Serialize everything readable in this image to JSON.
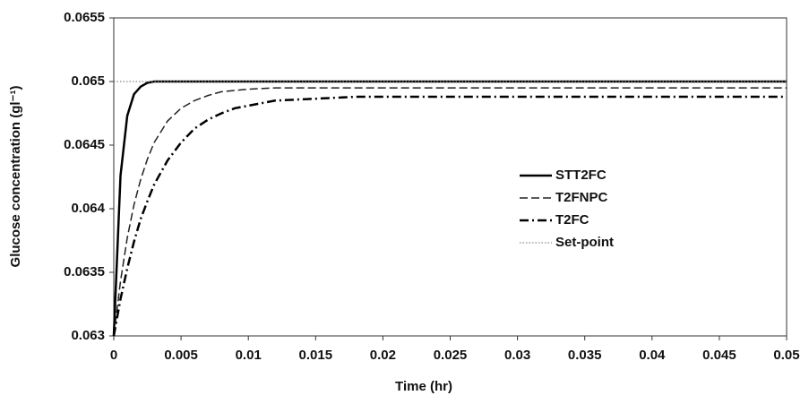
{
  "chart_data": {
    "type": "line",
    "xlabel": "Time (hr)",
    "ylabel": "Glucose concentration (gl⁻¹)",
    "x": [
      0,
      0.0005,
      0.001,
      0.0015,
      0.002,
      0.0025,
      0.003,
      0.004,
      0.005,
      0.006,
      0.007,
      0.008,
      0.009,
      0.01,
      0.012,
      0.014,
      0.016,
      0.018,
      0.02,
      0.025,
      0.03,
      0.035,
      0.04,
      0.045,
      0.05
    ],
    "series": [
      {
        "name": "STT2FC",
        "color": "#000000",
        "dash": "solid",
        "width": 2.5,
        "values": [
          0.063,
          0.06426,
          0.06473,
          0.0649,
          0.06496,
          0.06499,
          0.065,
          0.065,
          0.065,
          0.065,
          0.065,
          0.065,
          0.065,
          0.065,
          0.065,
          0.065,
          0.065,
          0.065,
          0.065,
          0.065,
          0.065,
          0.065,
          0.065,
          0.065,
          0.065
        ]
      },
      {
        "name": "T2FNPC",
        "color": "#222222",
        "dash": "dashed",
        "width": 1.5,
        "values": [
          0.063,
          0.06343,
          0.06377,
          0.06403,
          0.06423,
          0.06439,
          0.06452,
          0.06469,
          0.06479,
          0.06485,
          0.06489,
          0.06492,
          0.06493,
          0.06494,
          0.06495,
          0.06495,
          0.06495,
          0.06495,
          0.06495,
          0.06495,
          0.06495,
          0.06495,
          0.06495,
          0.06495,
          0.06495
        ]
      },
      {
        "name": "T2FC",
        "color": "#000000",
        "dash": "dashdot",
        "width": 2.5,
        "values": [
          0.063,
          0.06329,
          0.06353,
          0.06374,
          0.06392,
          0.06406,
          0.06419,
          0.06438,
          0.06452,
          0.06463,
          0.0647,
          0.06475,
          0.06479,
          0.06481,
          0.06485,
          0.06486,
          0.06487,
          0.06488,
          0.06488,
          0.06488,
          0.06488,
          0.06488,
          0.06488,
          0.06488,
          0.06488
        ]
      },
      {
        "name": "Set-point",
        "color": "#888888",
        "dash": "dotted",
        "width": 1.2,
        "values": [
          0.065,
          0.065,
          0.065,
          0.065,
          0.065,
          0.065,
          0.065,
          0.065,
          0.065,
          0.065,
          0.065,
          0.065,
          0.065,
          0.065,
          0.065,
          0.065,
          0.065,
          0.065,
          0.065,
          0.065,
          0.065,
          0.065,
          0.065,
          0.065,
          0.065
        ]
      }
    ],
    "xlim": [
      0,
      0.05
    ],
    "xticks": [
      0,
      0.005,
      0.01,
      0.015,
      0.02,
      0.025,
      0.03,
      0.035,
      0.04,
      0.045,
      0.05
    ],
    "ylim": [
      0.063,
      0.0655
    ],
    "yticks": [
      0.063,
      0.0635,
      0.064,
      0.0645,
      0.065,
      0.0655
    ],
    "grid": false,
    "legend": "center-right"
  }
}
